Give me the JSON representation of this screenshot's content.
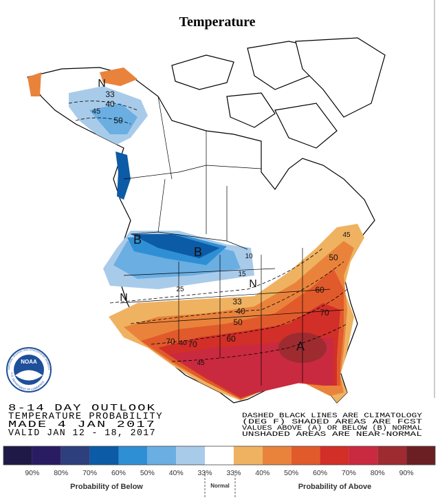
{
  "header": {
    "title": "Temperature"
  },
  "map": {
    "labels": [
      "N",
      "33",
      "40",
      "45",
      "50",
      "B",
      "B",
      "10",
      "15",
      "25",
      "N",
      "N",
      "33",
      "40",
      "50",
      "60",
      "70",
      "40",
      "70",
      "45",
      "45",
      "50",
      "60",
      "70",
      "A"
    ]
  },
  "logo": {
    "name": "NOAA",
    "ring_top": "NATIONAL OCEANIC AND ATMOSPHERIC ADMINISTRATION",
    "ring_bottom": "U.S. DEPARTMENT OF COMMERCE"
  },
  "outlook": {
    "lines": [
      "8-14 DAY OUTLOOK",
      "TEMPERATURE PROBABILITY",
      "MADE  4 JAN 2017",
      "VALID  JAN 12 - 18, 2017"
    ]
  },
  "notes": {
    "lines": [
      "DASHED BLACK LINES ARE CLIMATOLOGY",
      "(DEG F) SHADED AREAS ARE FCST",
      "VALUES ABOVE (A) OR BELOW (B) NORMAL",
      "UNSHADED AREAS ARE NEAR-NORMAL"
    ]
  },
  "legend": {
    "colors": [
      "#1f1947",
      "#2a1c62",
      "#2d3f7d",
      "#0c5ba7",
      "#2f8fd5",
      "#6aaee2",
      "#a9cbea",
      "#ffffff",
      "#efb261",
      "#e9833c",
      "#e15a2b",
      "#d12f28",
      "#c92a40",
      "#9d2b30",
      "#6c1f23"
    ],
    "labels": [
      "90%",
      "80%",
      "70%",
      "60%",
      "50%",
      "40%",
      "33%",
      "33%",
      "40%",
      "50%",
      "60%",
      "70%",
      "80%",
      "90%"
    ],
    "below_caption": "Probability of Below",
    "normal_caption": "Normal",
    "above_caption": "Probability of Above"
  }
}
